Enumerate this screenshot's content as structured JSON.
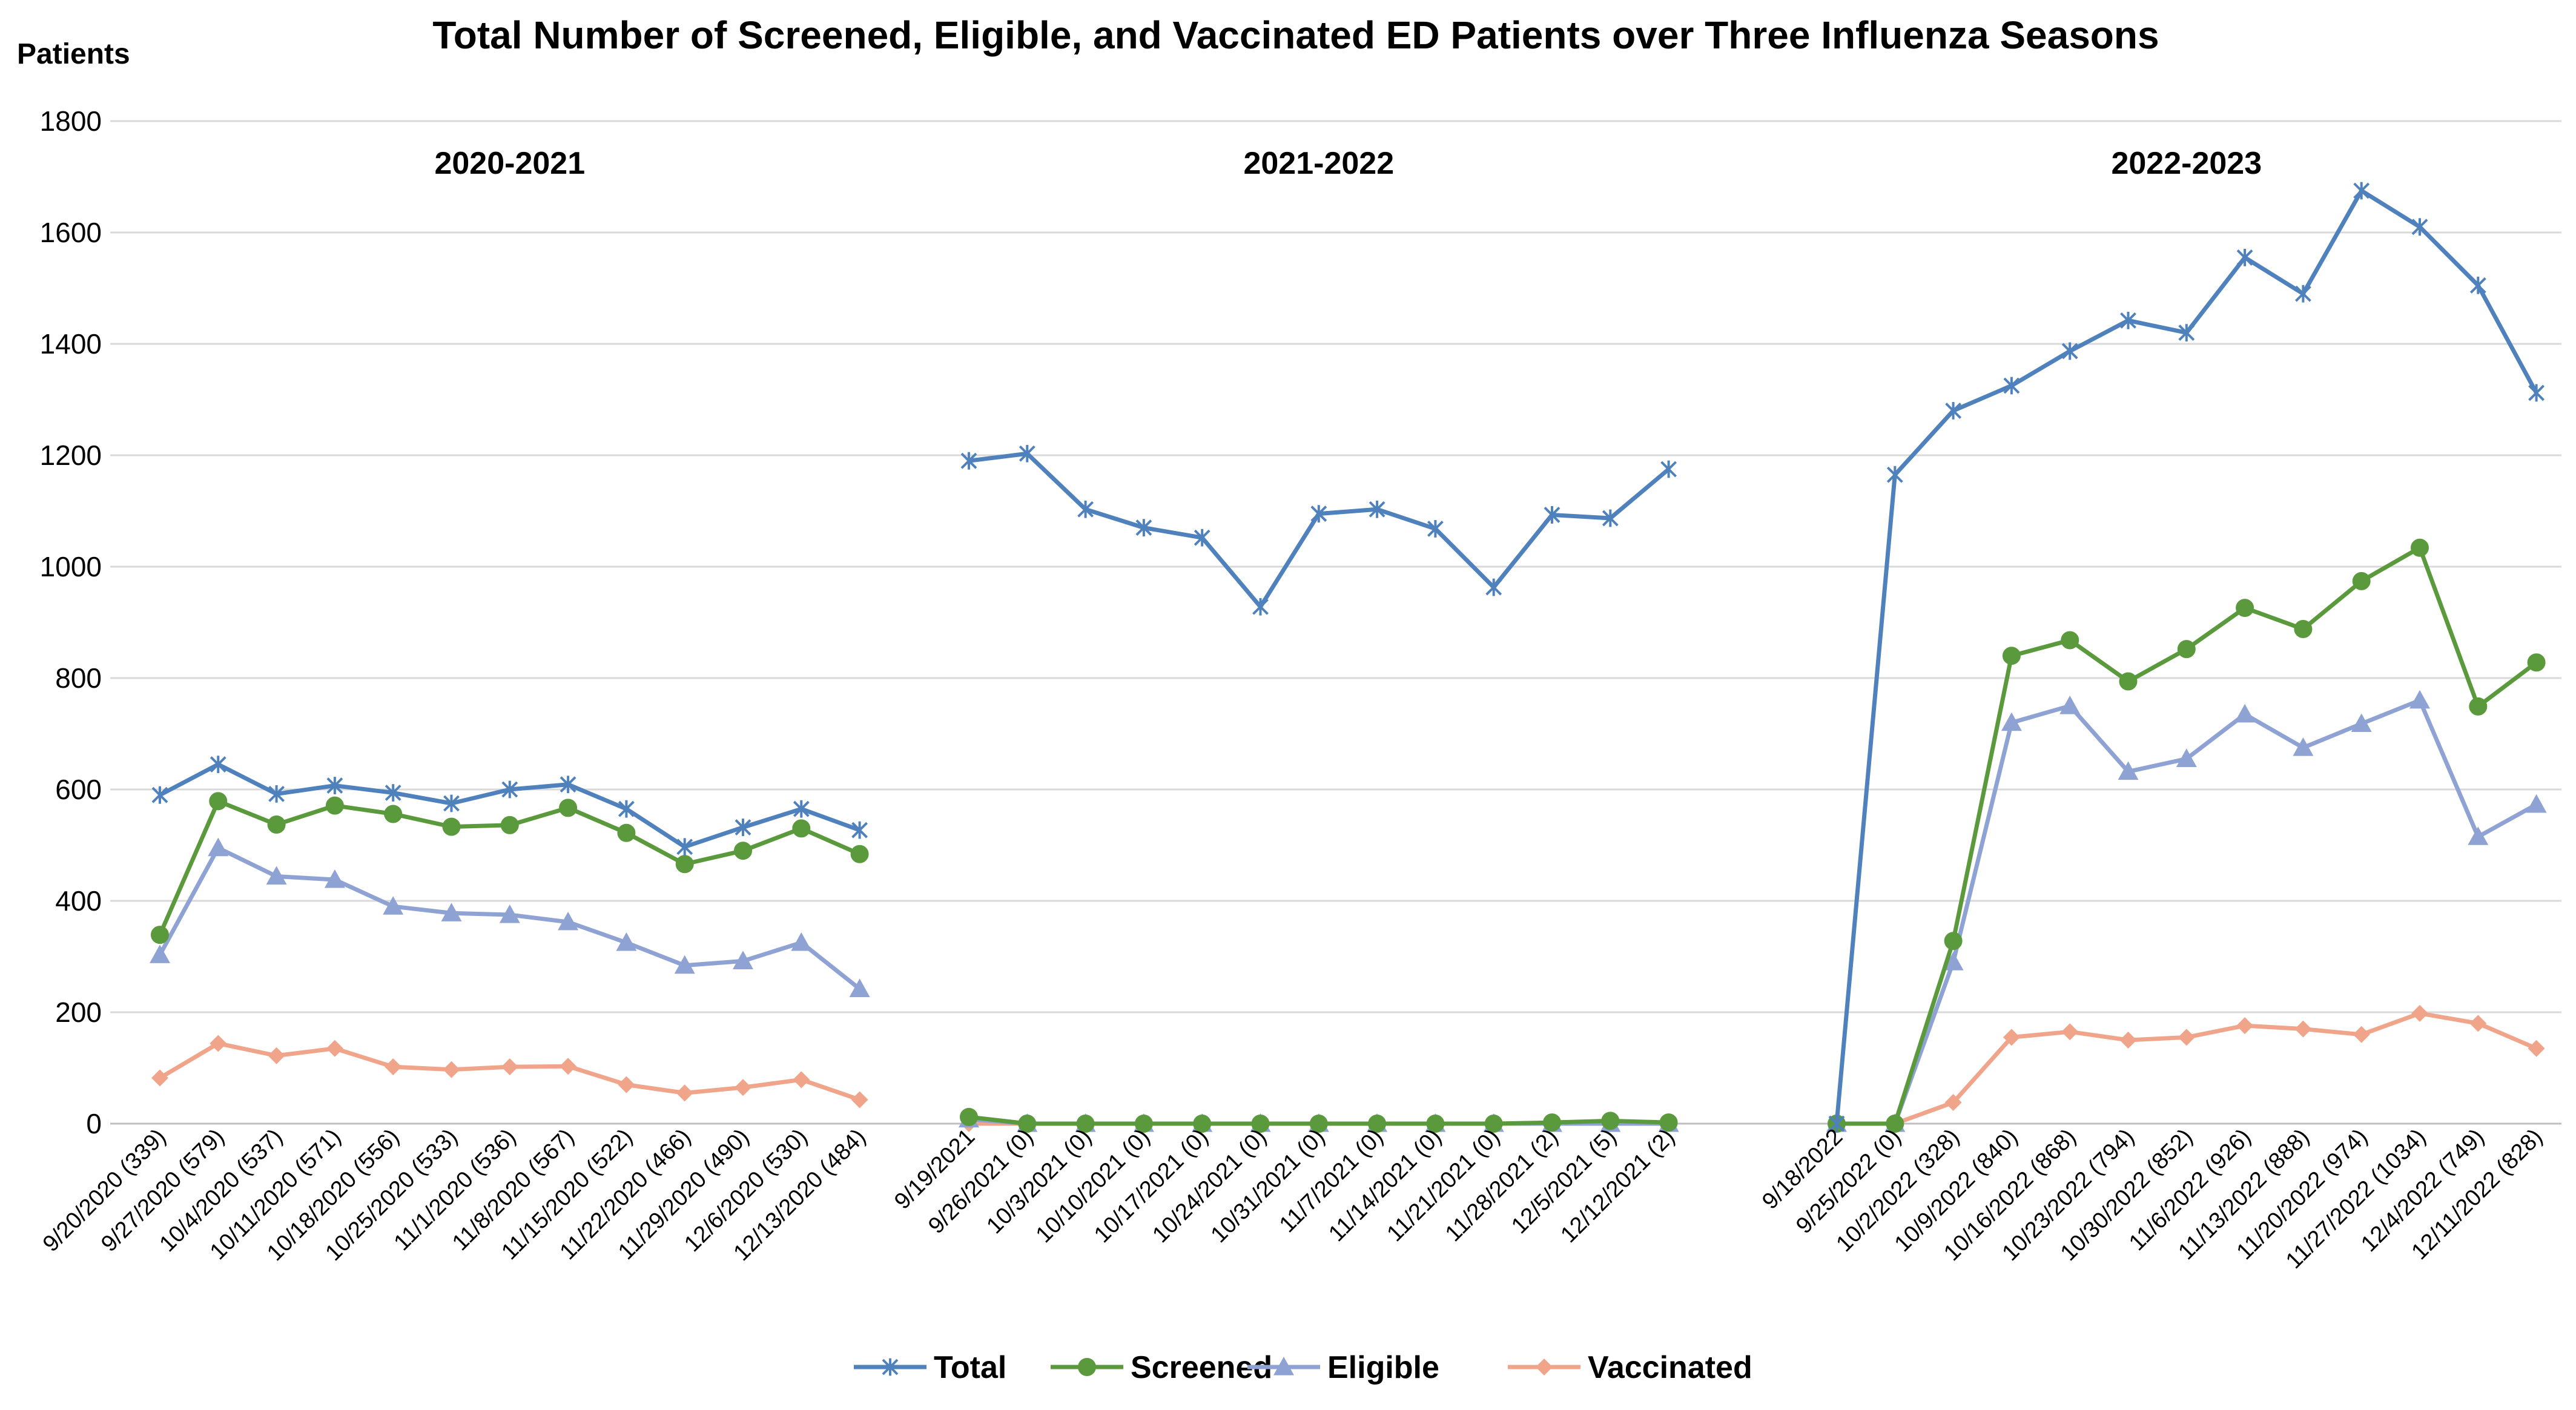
{
  "chart_data": {
    "type": "line",
    "title": "Total Number of Screened, Eligible, and Vaccinated ED Patients over Three Influenza Seasons",
    "ylabel": "Patients",
    "xlabel": "",
    "ylim": [
      0,
      1800
    ],
    "yticks": [
      0,
      200,
      400,
      600,
      800,
      1000,
      1200,
      1400,
      1600,
      1800
    ],
    "grid": true,
    "legend": "bottom",
    "colors": {
      "Total": "#4f81bd",
      "Screened": "#5b9a3c",
      "Eligible": "#8fa2d4",
      "Vaccinated": "#f0a58a"
    },
    "seasons": [
      {
        "label": "2020-2021",
        "categories": [
          "9/20/2020 (339)",
          "9/27/2020 (579)",
          "10/4/2020 (537)",
          "10/11/2020 (571)",
          "10/18/2020 (556)",
          "10/25/2020 (533)",
          "11/1/2020 (536)",
          "11/8/2020 (567)",
          "11/15/2020 (522)",
          "11/22/2020 (466)",
          "11/29/2020 (490)",
          "12/6/2020 (530)",
          "12/13/2020 (484)"
        ],
        "series": [
          {
            "name": "Total",
            "values": [
              590,
              645,
              592,
              607,
              594,
              575,
              600,
              609,
              565,
              497,
              532,
              565,
              527
            ]
          },
          {
            "name": "Screened",
            "values": [
              339,
              579,
              537,
              571,
              556,
              533,
              536,
              567,
              522,
              466,
              490,
              530,
              484
            ]
          },
          {
            "name": "Eligible",
            "values": [
              303,
              495,
              444,
              438,
              390,
              378,
              375,
              362,
              325,
              284,
              292,
              325,
              242
            ]
          },
          {
            "name": "Vaccinated",
            "values": [
              82,
              144,
              122,
              135,
              102,
              97,
              102,
              103,
              70,
              55,
              65,
              79,
              43
            ]
          }
        ]
      },
      {
        "label": "2021-2022",
        "categories": [
          "9/19/2021",
          "9/26/2021 (0)",
          "10/3/2021 (0)",
          "10/10/2021 (0)",
          "10/17/2021 (0)",
          "10/24/2021 (0)",
          "10/31/2021 (0)",
          "11/7/2021 (0)",
          "11/14/2021 (0)",
          "11/21/2021 (0)",
          "11/28/2021 (2)",
          "12/5/2021 (5)",
          "12/12/2021 (2)"
        ],
        "series": [
          {
            "name": "Total",
            "values": [
              1190,
              1203,
              1103,
              1070,
              1052,
              928,
              1095,
              1103,
              1068,
              963,
              1093,
              1087,
              1175
            ]
          },
          {
            "name": "Screened",
            "values": [
              12,
              0,
              0,
              0,
              0,
              0,
              0,
              0,
              0,
              0,
              2,
              5,
              2
            ]
          },
          {
            "name": "Eligible",
            "values": [
              8,
              0,
              0,
              0,
              0,
              0,
              0,
              0,
              0,
              0,
              0,
              0,
              0
            ]
          },
          {
            "name": "Vaccinated",
            "values": [
              0,
              0,
              0,
              0,
              0,
              0,
              0,
              0,
              0,
              0,
              0,
              0,
              0
            ]
          }
        ]
      },
      {
        "label": "2022-2023",
        "categories": [
          "9/18/2022",
          "9/25/2022 (0)",
          "10/2/2022 (328)",
          "10/9/2022 (840)",
          "10/16/2022 (868)",
          "10/23/2022 (794)",
          "10/30/2022 (852)",
          "11/6/2022 (926)",
          "11/13/2022 (888)",
          "11/20/2022 (974)",
          "11/27/2022 (1034)",
          "12/4/2022 (749)",
          "12/11/2022 (828)"
        ],
        "series": [
          {
            "name": "Total",
            "values": [
              0,
              1165,
              1280,
              1325,
              1387,
              1442,
              1420,
              1555,
              1490,
              1675,
              1610,
              1505,
              1312
            ]
          },
          {
            "name": "Screened",
            "values": [
              0,
              0,
              328,
              840,
              868,
              794,
              852,
              926,
              888,
              974,
              1034,
              749,
              828
            ]
          },
          {
            "name": "Eligible",
            "values": [
              0,
              0,
              290,
              720,
              750,
              632,
              655,
              735,
              675,
              718,
              760,
              515,
              573
            ]
          },
          {
            "name": "Vaccinated",
            "values": [
              0,
              0,
              38,
              155,
              165,
              150,
              155,
              176,
              170,
              160,
              198,
              180,
              135
            ]
          }
        ]
      }
    ],
    "legend_entries": [
      "Total",
      "Screened",
      "Eligible",
      "Vaccinated"
    ],
    "markers": {
      "Total": "cross",
      "Screened": "circle",
      "Eligible": "triangle",
      "Vaccinated": "diamond"
    }
  }
}
